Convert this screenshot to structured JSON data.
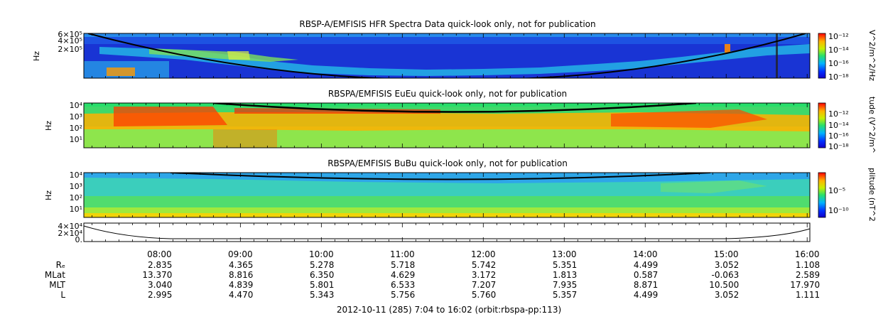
{
  "chart_data": [
    {
      "type": "heatmap",
      "title": "RBSP-A/EMFISIS  HFR Spectra Data quick-look only, not for publication",
      "ylabel": "Hz",
      "yticks": [
        "2×10⁵",
        "4×10⁵",
        "6×10⁵"
      ],
      "colorbar_label": "V^2/m^2/Hz",
      "colorbar_ticks": [
        "10⁻¹²",
        "10⁻¹⁴",
        "10⁻¹⁶",
        "10⁻¹⁸"
      ],
      "colorbar_range_log10": [
        -18.5,
        -11.5
      ],
      "dominant_color": "#1a3cd8"
    },
    {
      "type": "heatmap",
      "title": "RBSPA/EMFISIS  EuEu quick-look only, not for publication",
      "ylabel": "Hz",
      "yticks": [
        "10¹",
        "10²",
        "10³",
        "10⁴"
      ],
      "colorbar_label": "tude (V^2/m^",
      "colorbar_ticks": [
        "10⁻¹²",
        "10⁻¹⁴",
        "10⁻¹⁶",
        "10⁻¹⁸"
      ],
      "colorbar_range_log10": [
        -18.5,
        -11.5
      ],
      "dominant_color": "#3fd86a"
    },
    {
      "type": "heatmap",
      "title": "RBSPA/EMFISIS  BuBu quick-look only, not for publication",
      "ylabel": "Hz",
      "yticks": [
        "10¹",
        "10²",
        "10³",
        "10⁴"
      ],
      "colorbar_label": "plitude (nT^2",
      "colorbar_ticks": [
        "10⁻⁵",
        "10⁻¹⁰"
      ],
      "colorbar_range_log10": [
        -13,
        -2
      ],
      "dominant_color": "#2ea6e8"
    },
    {
      "type": "line",
      "yticks": [
        "0.",
        "2×10⁴",
        "4×10⁴"
      ],
      "ylim": [
        0,
        40000
      ]
    }
  ],
  "xaxis": {
    "ticks": [
      "08:00",
      "09:00",
      "10:00",
      "11:00",
      "12:00",
      "13:00",
      "14:00",
      "15:00",
      "16:00"
    ]
  },
  "ephemeris": {
    "row_labels": [
      "Rₑ",
      "MLat",
      "MLT",
      "L"
    ],
    "rows": [
      [
        "2.835",
        "4.365",
        "5.278",
        "5.718",
        "5.742",
        "5.351",
        "4.499",
        "3.052",
        "1.108"
      ],
      [
        "13.370",
        "8.816",
        "6.350",
        "4.629",
        "3.172",
        "1.813",
        "0.587",
        "-0.063",
        "2.589"
      ],
      [
        "3.040",
        "4.839",
        "5.801",
        "6.533",
        "7.207",
        "7.935",
        "8.871",
        "10.500",
        "17.970"
      ],
      [
        "2.995",
        "4.470",
        "5.343",
        "5.756",
        "5.760",
        "5.357",
        "4.499",
        "3.052",
        "1.111"
      ]
    ]
  },
  "footer": "2012-10-11 (285) 7:04 to 16:02 (orbit:rbspa-pp:113)"
}
